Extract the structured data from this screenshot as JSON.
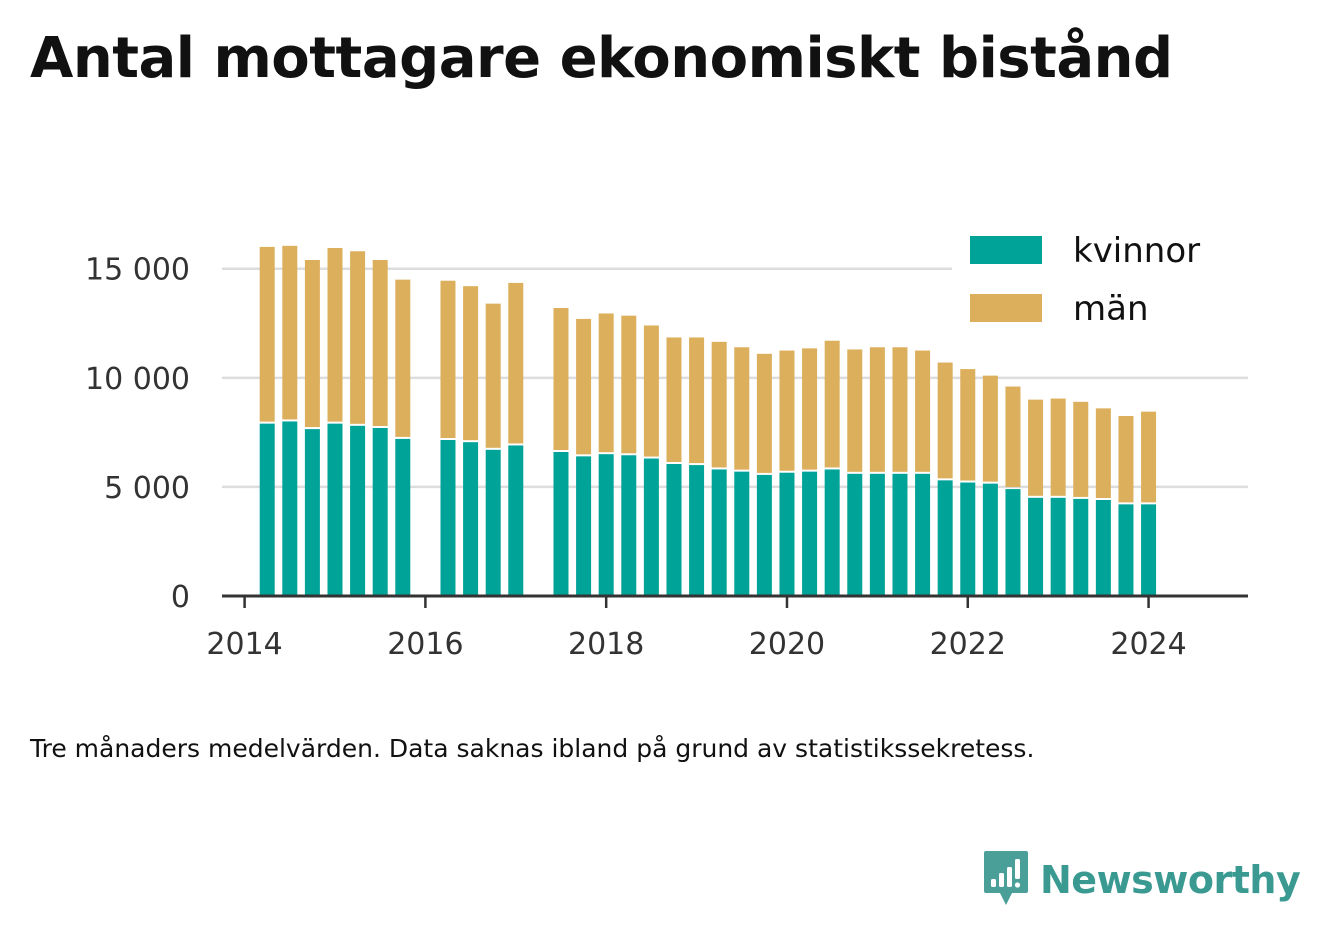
{
  "title": "Antal mottagare ekonomiskt bistånd",
  "note": "Tre månaders medelvärden. Data saknas ibland på grund av statistikssekretess.",
  "brand": {
    "name": "Newsworthy",
    "icon": "newsworthy-logo-icon",
    "color": "#3a9a92"
  },
  "chart_data": {
    "type": "bar",
    "stacked": true,
    "x_ticks": [
      "2014",
      "2016",
      "2018",
      "2020",
      "2022",
      "2024"
    ],
    "y_ticks": [
      {
        "value": 0,
        "label": "0"
      },
      {
        "value": 5000,
        "label": "5 000"
      },
      {
        "value": 10000,
        "label": "10 000"
      },
      {
        "value": 15000,
        "label": "15 000"
      }
    ],
    "xlim": [
      2013.75,
      2025.1
    ],
    "ylim": [
      0,
      16500
    ],
    "grid": true,
    "legend_position": "top-right",
    "x": [
      "2014-04",
      "2014-07",
      "2014-10",
      "2015-01",
      "2015-04",
      "2015-07",
      "2015-10",
      "2016-04",
      "2016-07",
      "2016-10",
      "2017-01",
      "2017-07",
      "2017-10",
      "2018-01",
      "2018-04",
      "2018-07",
      "2018-10",
      "2019-01",
      "2019-04",
      "2019-07",
      "2019-10",
      "2020-01",
      "2020-04",
      "2020-07",
      "2020-10",
      "2021-01",
      "2021-04",
      "2021-07",
      "2021-10",
      "2022-01",
      "2022-04",
      "2022-07",
      "2022-10",
      "2023-01",
      "2023-04",
      "2023-07",
      "2023-10",
      "2024-01"
    ],
    "series": [
      {
        "name": "kvinnor",
        "color": "#00a398",
        "values": [
          7900,
          8000,
          7650,
          7900,
          7800,
          7700,
          7200,
          7150,
          7050,
          6700,
          6900,
          6600,
          6400,
          6500,
          6450,
          6300,
          6050,
          6000,
          5800,
          5700,
          5550,
          5650,
          5700,
          5800,
          5600,
          5600,
          5600,
          5600,
          5300,
          5200,
          5150,
          4900,
          4500,
          4500,
          4450,
          4400,
          4200,
          4200
        ]
      },
      {
        "name": "män",
        "color": "#dcaf5c",
        "values": [
          8100,
          8050,
          7750,
          8050,
          8000,
          7700,
          7300,
          7300,
          7150,
          6700,
          7450,
          6600,
          6300,
          6450,
          6400,
          6100,
          5800,
          5850,
          5850,
          5700,
          5550,
          5600,
          5650,
          5900,
          5700,
          5800,
          5800,
          5650,
          5400,
          5200,
          4950,
          4700,
          4500,
          4550,
          4450,
          4200,
          4050,
          4250
        ]
      }
    ]
  }
}
